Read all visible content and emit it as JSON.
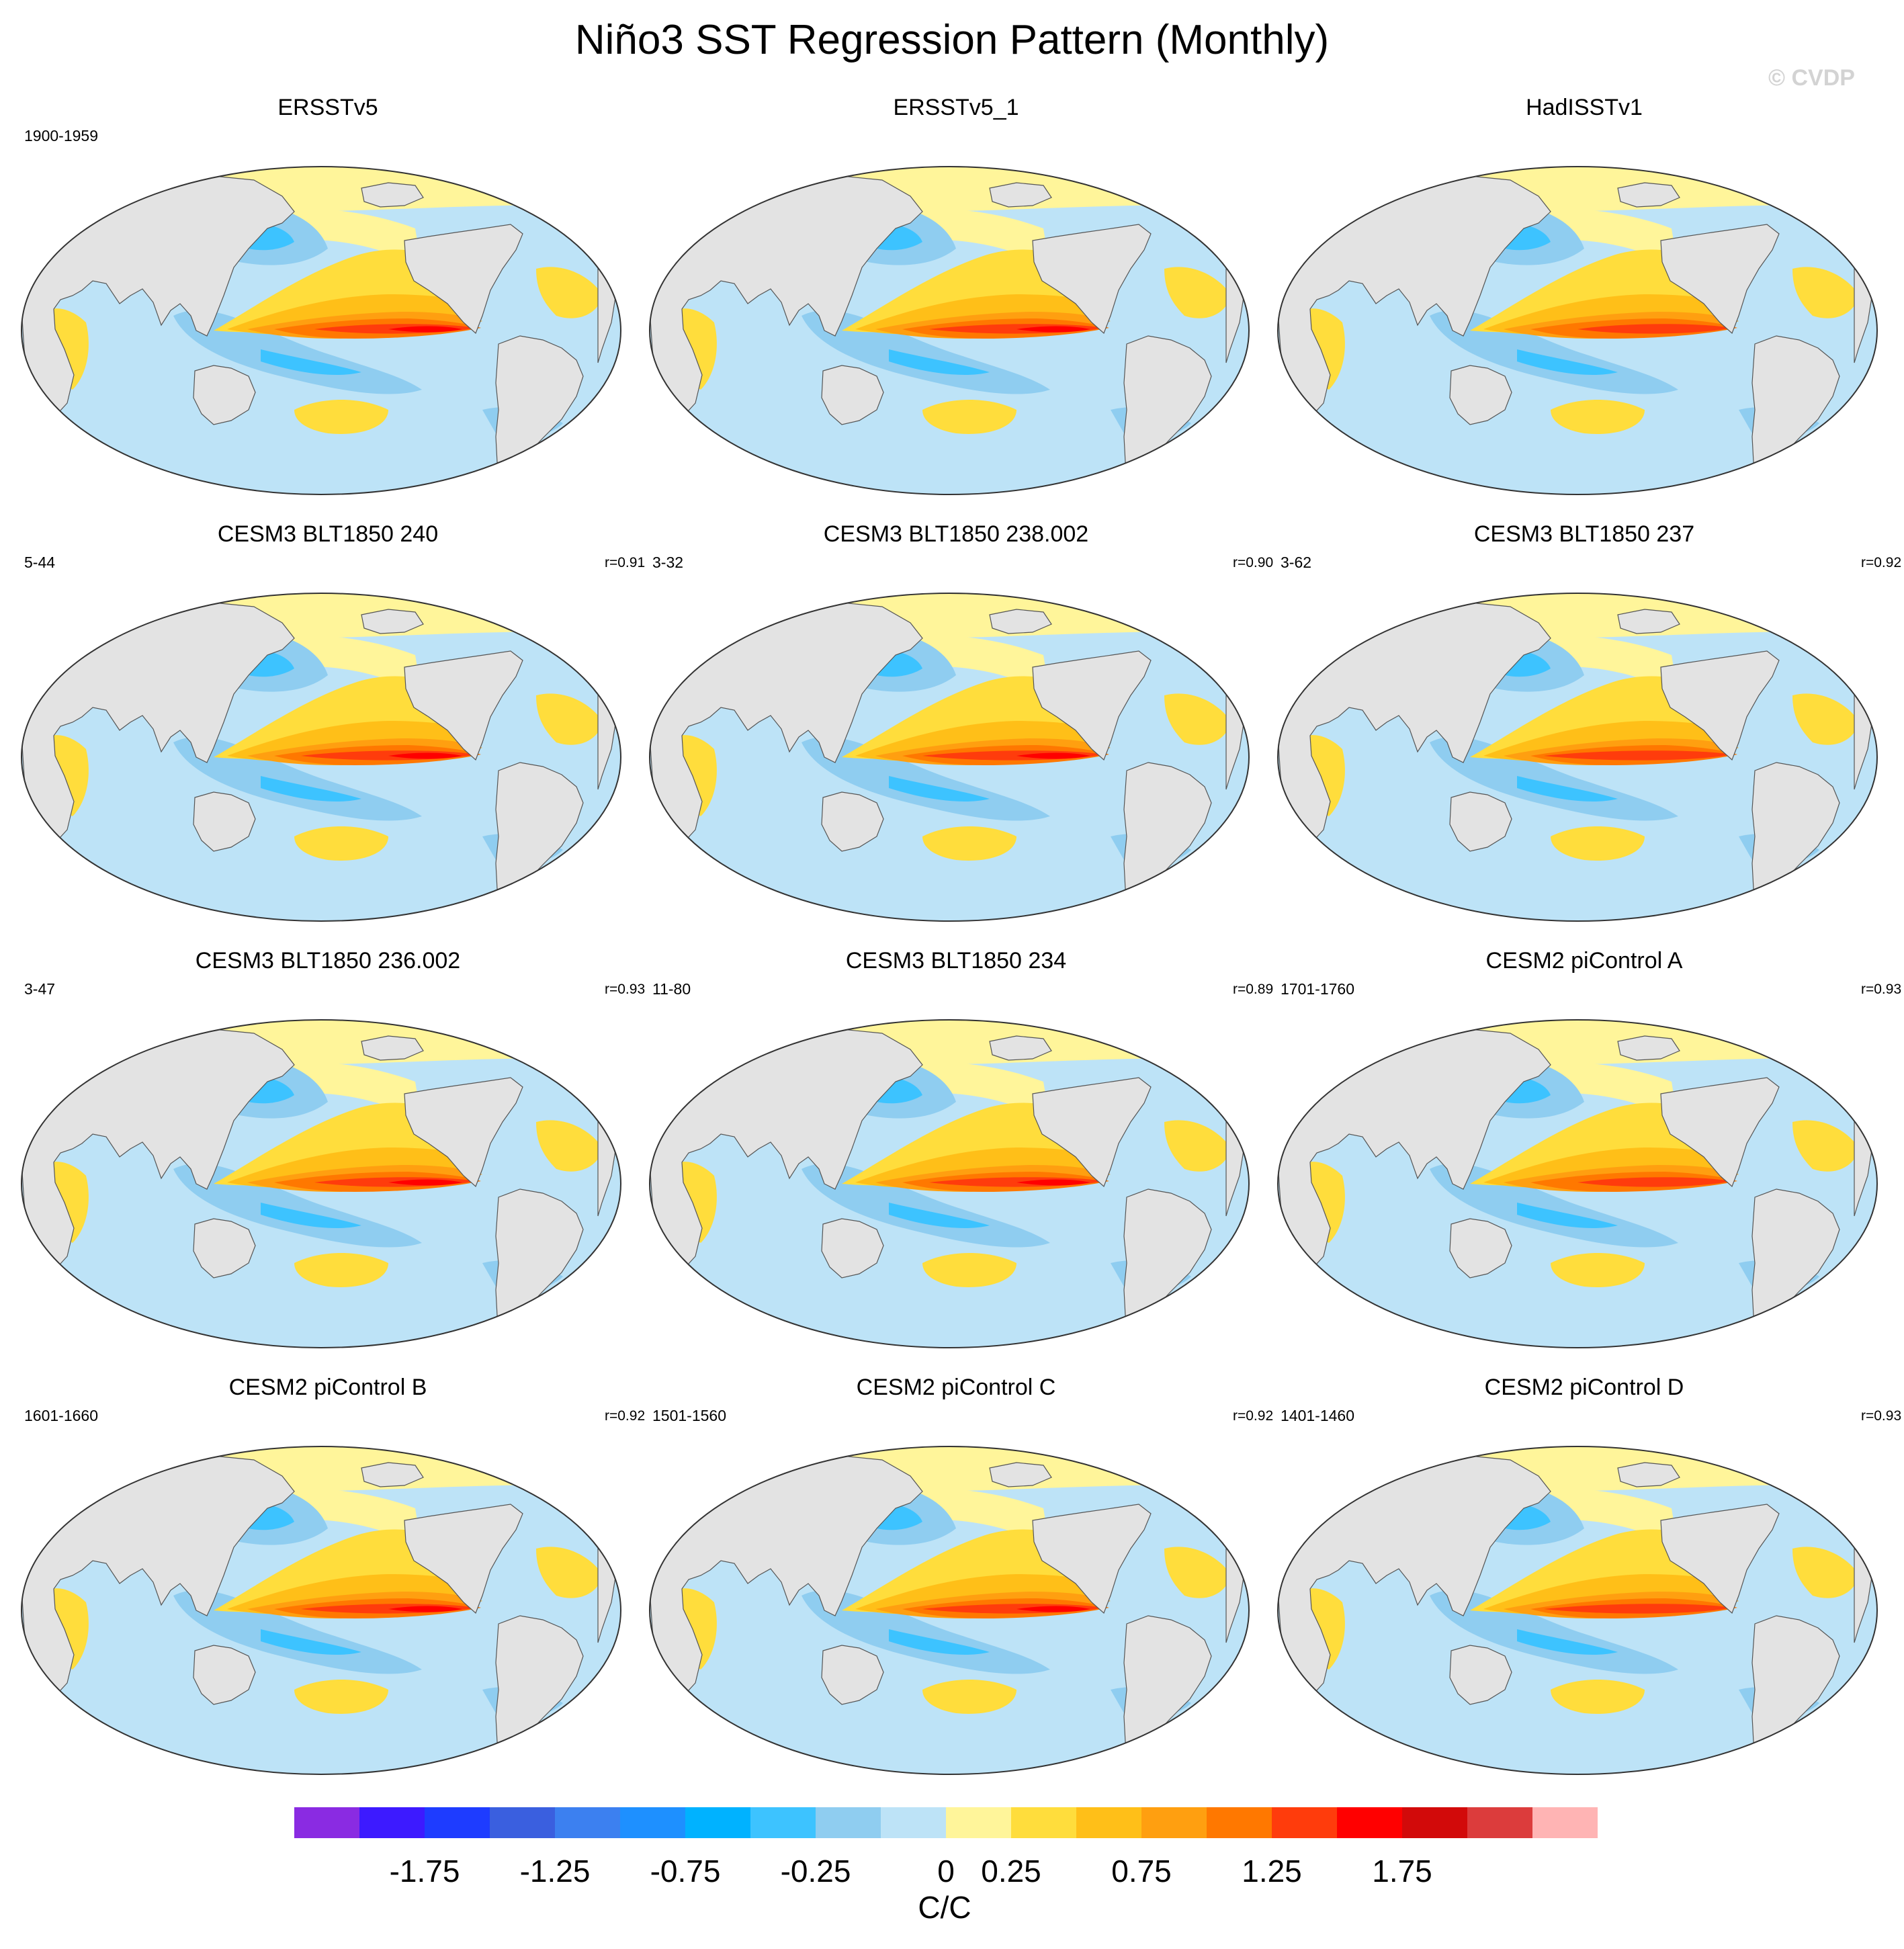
{
  "title": "Niño3 SST Regression Pattern (Monthly)",
  "watermark": "© CVDP",
  "chart_data": {
    "type": "map-panels",
    "projection": "Robinson-like global",
    "panels": [
      {
        "title": "ERSSTv5",
        "years": "1900-1959",
        "corr": ""
      },
      {
        "title": "ERSSTv5_1",
        "years": "",
        "corr": ""
      },
      {
        "title": "HadISSTv1",
        "years": "",
        "corr": ""
      },
      {
        "title": "CESM3 BLT1850 240",
        "years": "5-44",
        "corr": "r=0.91"
      },
      {
        "title": "CESM3 BLT1850 238.002",
        "years": "3-32",
        "corr": "r=0.90"
      },
      {
        "title": "CESM3 BLT1850 237",
        "years": "3-62",
        "corr": "r=0.92"
      },
      {
        "title": "CESM3 BLT1850 236.002",
        "years": "3-47",
        "corr": "r=0.93"
      },
      {
        "title": "CESM3 BLT1850 234",
        "years": "11-80",
        "corr": "r=0.89"
      },
      {
        "title": "CESM2 piControl A",
        "years": "1701-1760",
        "corr": "r=0.93"
      },
      {
        "title": "CESM2 piControl B",
        "years": "1601-1660",
        "corr": "r=0.92"
      },
      {
        "title": "CESM2 piControl C",
        "years": "1501-1560",
        "corr": "r=0.92"
      },
      {
        "title": "CESM2 piControl D",
        "years": "1401-1460",
        "corr": "r=0.93"
      }
    ],
    "colorbar": {
      "units": "C/C",
      "levels": [
        -2,
        -1.75,
        -1.5,
        -1.25,
        -1,
        -0.75,
        -0.5,
        -0.25,
        0,
        0.25,
        0.5,
        0.75,
        1,
        1.25,
        1.5,
        1.75,
        2
      ],
      "tick_labels": [
        "-1.75",
        "-1.25",
        "-0.75",
        "-0.25",
        "0",
        "0.25",
        "0.75",
        "1.25",
        "1.75"
      ],
      "tick_values": [
        -1.75,
        -1.25,
        -0.75,
        -0.25,
        0,
        0.25,
        0.75,
        1.25,
        1.75
      ],
      "colors": [
        "#8a2be2",
        "#3d1aff",
        "#1e3cff",
        "#3a5fdf",
        "#3c80f0",
        "#1e90ff",
        "#00b2ff",
        "#3dc3ff",
        "#8fcdf0",
        "#bde3f7",
        "#fff59a",
        "#ffdd3c",
        "#ffbf18",
        "#ff9f10",
        "#ff7800",
        "#ff3c0c",
        "#ff0000",
        "#d20a0a",
        "#dc3c3c",
        "#ffb4b4"
      ]
    }
  },
  "colors": {
    "land": "#e3e3e3",
    "neutral_cool": "#bde3f7",
    "neutral_warm": "#fff59a"
  }
}
